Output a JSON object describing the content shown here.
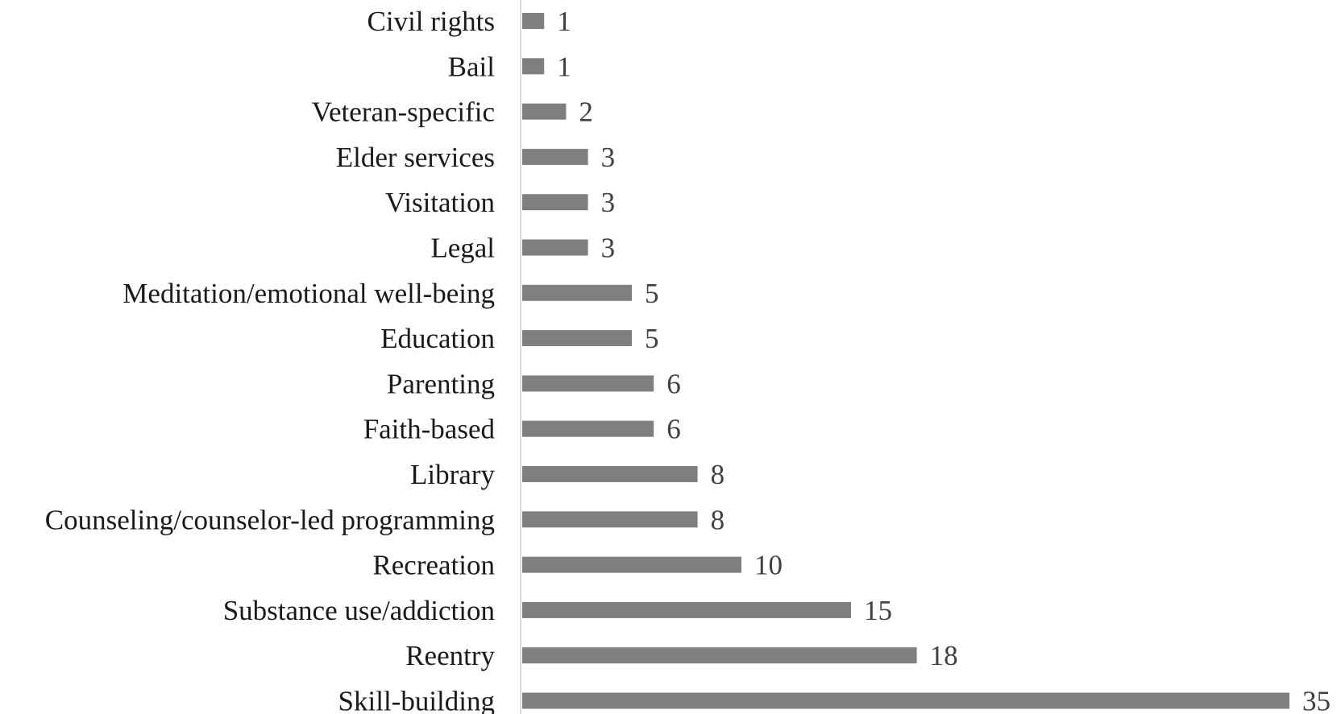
{
  "chart_data": {
    "type": "bar",
    "orientation": "horizontal",
    "title": "",
    "xlabel": "",
    "ylabel": "",
    "categories": [
      "Civil rights",
      "Bail",
      "Veteran-specific",
      "Elder services",
      "Visitation",
      "Legal",
      "Meditation/emotional well-being",
      "Education",
      "Parenting",
      "Faith-based",
      "Library",
      "Counseling/counselor-led programming",
      "Recreation",
      "Substance use/addiction",
      "Reentry",
      "Skill-building"
    ],
    "values": [
      1,
      1,
      2,
      3,
      3,
      3,
      5,
      5,
      6,
      6,
      8,
      8,
      10,
      15,
      18,
      35
    ],
    "xlim": [
      0,
      35
    ],
    "data_labels": true,
    "grid": false,
    "legend": "none",
    "colors": {
      "bar": "#7f7f7f",
      "axis": "#d9d9d9",
      "category_text": "#1a1a1a",
      "value_text": "#404040"
    }
  }
}
